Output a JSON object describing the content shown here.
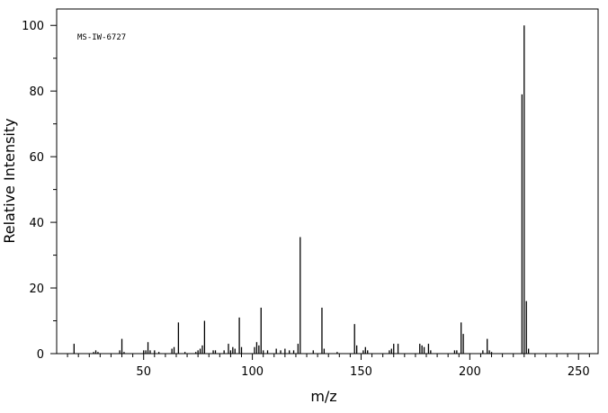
{
  "chart_data": {
    "type": "stem",
    "title": "MS-IW-6727",
    "x_label": "m/z",
    "y_label": "Relative Intensity",
    "color": "#000000",
    "x": [
      18,
      27,
      28,
      29,
      39,
      40,
      41,
      50,
      51,
      52,
      53,
      55,
      57,
      63,
      64,
      66,
      69,
      74,
      75,
      76,
      77,
      78,
      82,
      83,
      87,
      89,
      90,
      91,
      92,
      94,
      95,
      101,
      102,
      103,
      104,
      105,
      107,
      111,
      113,
      115,
      117,
      119,
      121,
      122,
      128,
      132,
      133,
      139,
      147,
      148,
      151,
      152,
      153,
      163,
      164,
      165,
      167,
      177,
      178,
      179,
      181,
      182,
      193,
      194,
      196,
      197,
      206,
      208,
      209,
      210,
      224,
      225,
      226,
      227
    ],
    "values": [
      3,
      0.5,
      1,
      0.5,
      1,
      4.5,
      0.5,
      1,
      1,
      3.5,
      1,
      1,
      0.5,
      1.5,
      2,
      9.5,
      0.5,
      0.5,
      1,
      1.5,
      2.5,
      10,
      1,
      1,
      1,
      3,
      1,
      2,
      1.5,
      11,
      2,
      2,
      3.5,
      2.5,
      14,
      1,
      1,
      1.5,
      1,
      1.5,
      1,
      1,
      3,
      35.5,
      1,
      14,
      1.5,
      0.5,
      9,
      2.5,
      1,
      2,
      1,
      1,
      1.5,
      3,
      3,
      3,
      2.5,
      2,
      3,
      1,
      1,
      1,
      9.5,
      6,
      1,
      4.5,
      1,
      0.5,
      79,
      100,
      16,
      1.5
    ],
    "xlim": [
      10,
      259
    ],
    "xticks": [
      50,
      100,
      150,
      200,
      250
    ],
    "xminorticks": [
      15,
      20,
      25,
      30,
      35,
      40,
      45,
      55,
      60,
      65,
      70,
      75,
      80,
      85,
      90,
      95,
      105,
      110,
      115,
      120,
      125,
      130,
      135,
      140,
      145,
      155,
      160,
      165,
      170,
      175,
      180,
      185,
      190,
      195,
      205,
      210,
      215,
      220,
      225,
      230,
      235,
      240,
      245,
      255
    ],
    "ylim": [
      0,
      105
    ],
    "yticks": [
      0,
      20,
      40,
      60,
      80,
      100
    ],
    "yminorticks": [
      10,
      30,
      50,
      70,
      90
    ]
  }
}
